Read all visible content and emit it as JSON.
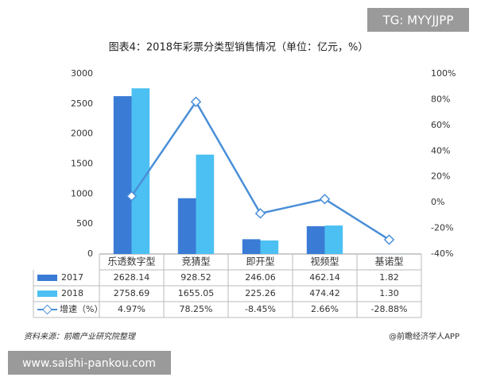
{
  "watermark": "TG: MYYJJPP",
  "footer_url": "www.saishi-pankou.com",
  "chart_data": {
    "type": "bar",
    "title": "图表4：2018年彩票分类型销售情况（单位：亿元，%）",
    "categories": [
      "乐透数字型",
      "竞猜型",
      "即开型",
      "视频型",
      "基诺型"
    ],
    "series": [
      {
        "name": "2017",
        "color": "#3a7bd5",
        "values": [
          2628.14,
          928.52,
          246.06,
          462.14,
          1.82
        ],
        "value_labels": [
          "2628.14",
          "928.52",
          "246.06",
          "462.14",
          "1.82"
        ]
      },
      {
        "name": "2018",
        "color": "#4cc0f2",
        "values": [
          2758.69,
          1655.05,
          225.26,
          474.42,
          1.3
        ],
        "value_labels": [
          "2758.69",
          "1655.05",
          "225.26",
          "474.42",
          "1.30"
        ]
      },
      {
        "name": "增速（%）",
        "type": "line",
        "axis": "y2",
        "color": "#4a8fd8",
        "values": [
          4.97,
          78.25,
          -8.45,
          2.66,
          -28.88
        ],
        "value_labels": [
          "4.97%",
          "78.25%",
          "-8.45%",
          "2.66%",
          "-28.88%"
        ]
      }
    ],
    "ylim": [
      0,
      3000
    ],
    "yticks": [
      0,
      500,
      1000,
      1500,
      2000,
      2500,
      3000
    ],
    "y2lim": [
      -40,
      100
    ],
    "y2ticks": [
      {
        "value": -40,
        "label": "-40%"
      },
      {
        "value": -20,
        "label": "-20%"
      },
      {
        "value": 0,
        "label": "0%"
      },
      {
        "value": 20,
        "label": "20%"
      },
      {
        "value": 40,
        "label": "40%"
      },
      {
        "value": 60,
        "label": "60%"
      },
      {
        "value": 80,
        "label": "80%"
      },
      {
        "value": 100,
        "label": "100%"
      }
    ],
    "grid": false,
    "source": "资料来源：前瞻产业研究院整理",
    "credit": "@前瞻经济学人APP"
  }
}
